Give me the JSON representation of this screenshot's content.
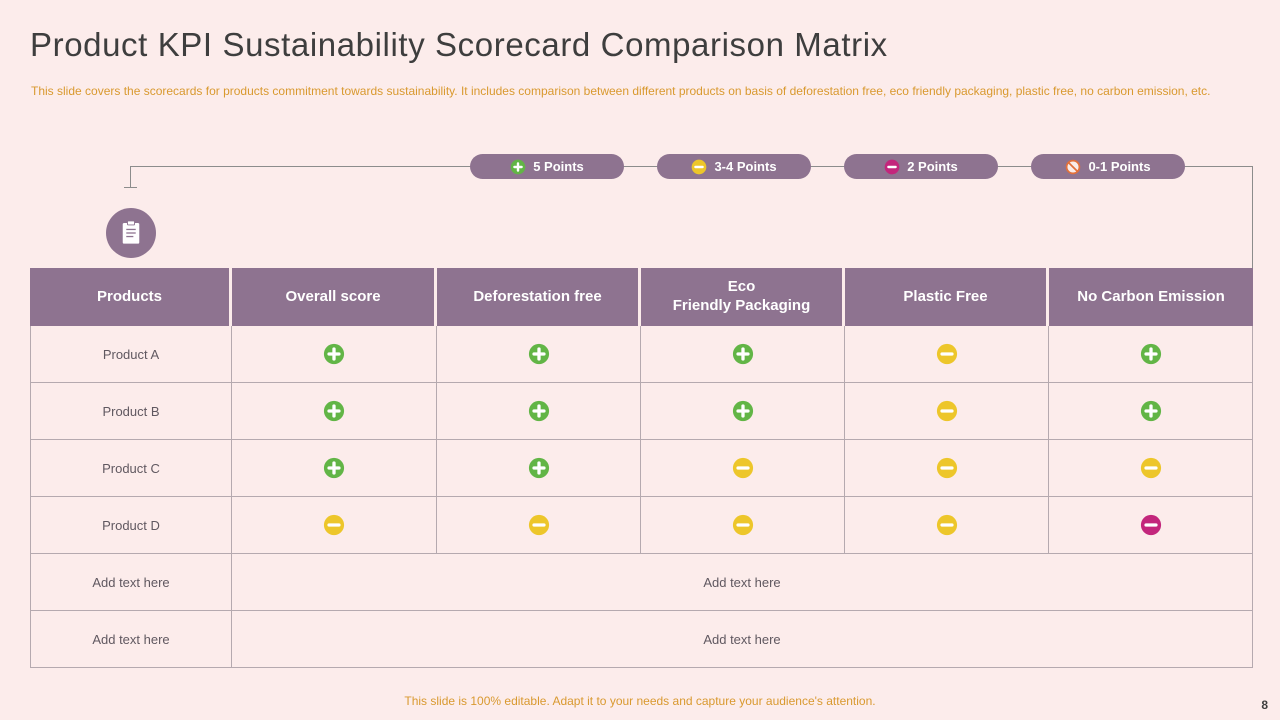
{
  "slide": {
    "title": "Product KPI Sustainability Scorecard Comparison  Matrix",
    "subtitle": "This slide covers the scorecards for products commitment towards sustainability. It includes comparison between different products on basis of deforestation free, eco friendly packaging, plastic free, no carbon emission, etc.",
    "footer_note": "This slide is 100% editable. Adapt it to your needs and capture your audience's attention.",
    "page_number": "8"
  },
  "colors": {
    "background": "#fceceb",
    "accent_purple": "#8e7390",
    "plus_green": "#62b546",
    "minus_yellow": "#edc62a",
    "minus_pink": "#c3267c",
    "no_entry_orange": "#e2703a",
    "text_orange": "#d9992f",
    "line_gray": "#8c8c8c"
  },
  "legend": [
    {
      "label": "5 Points",
      "icon": "plus-circle-icon"
    },
    {
      "label": "3-4 Points",
      "icon": "minus-circle-yellow-icon"
    },
    {
      "label": "2 Points",
      "icon": "minus-circle-pink-icon"
    },
    {
      "label": "0-1 Points",
      "icon": "no-entry-icon"
    }
  ],
  "table": {
    "headers": [
      "Products",
      "Overall score",
      "Deforestation free",
      "Eco\nFriendly Packaging",
      "Plastic Free",
      "No Carbon Emission"
    ],
    "rows": [
      {
        "product": "Product A",
        "scores": [
          "plus-circle-icon",
          "plus-circle-icon",
          "plus-circle-icon",
          "minus-circle-yellow-icon",
          "plus-circle-icon"
        ]
      },
      {
        "product": "Product B",
        "scores": [
          "plus-circle-icon",
          "plus-circle-icon",
          "plus-circle-icon",
          "minus-circle-yellow-icon",
          "plus-circle-icon"
        ]
      },
      {
        "product": "Product C",
        "scores": [
          "plus-circle-icon",
          "plus-circle-icon",
          "minus-circle-yellow-icon",
          "minus-circle-yellow-icon",
          "minus-circle-yellow-icon"
        ]
      },
      {
        "product": "Product D",
        "scores": [
          "minus-circle-yellow-icon",
          "minus-circle-yellow-icon",
          "minus-circle-yellow-icon",
          "minus-circle-yellow-icon",
          "minus-circle-pink-icon"
        ]
      }
    ],
    "text_rows": [
      {
        "label": "Add text here",
        "value": "Add text here"
      },
      {
        "label": "Add text here",
        "value": "Add text here"
      }
    ]
  }
}
